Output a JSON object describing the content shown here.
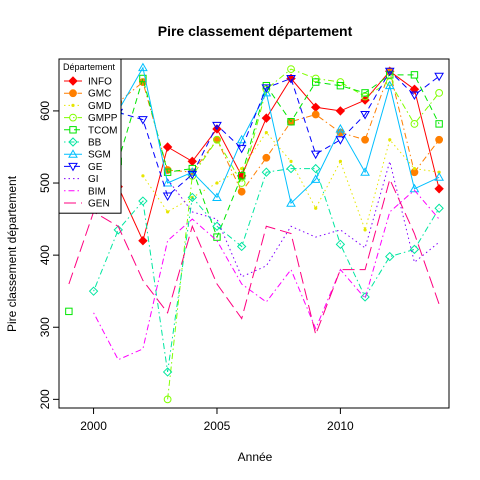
{
  "chart_data": {
    "type": "line",
    "title": "Pire classement département",
    "xlabel": "Année",
    "ylabel": "Pire classement département",
    "xlim": [
      1998.6,
      2014.4
    ],
    "ylim": [
      188,
      672
    ],
    "xticks": [
      2000,
      2005,
      2010
    ],
    "yticks": [
      200,
      300,
      400,
      500,
      600
    ],
    "legend": {
      "title": "Département",
      "position": "top-left"
    },
    "x": [
      1999,
      2000,
      2001,
      2002,
      2003,
      2004,
      2005,
      2006,
      2007,
      2008,
      2009,
      2010,
      2011,
      2012,
      2013,
      2014
    ],
    "series": [
      {
        "name": "INFO",
        "color": "#ff0000",
        "dash": "solid",
        "marker": "diamond-filled",
        "values": [
          null,
          null,
          495,
          420,
          550,
          530,
          575,
          510,
          590,
          645,
          605,
          600,
          615,
          655,
          630,
          492
        ]
      },
      {
        "name": "GMC",
        "color": "#ff7f00",
        "dash": "dash-dot",
        "marker": "circle-filled",
        "values": [
          null,
          540,
          612,
          640,
          518,
          515,
          560,
          488,
          535,
          585,
          595,
          570,
          560,
          655,
          515,
          560
        ]
      },
      {
        "name": "GMD",
        "color": "#e6e600",
        "dash": "dot",
        "marker": "dot",
        "values": [
          null,
          null,
          null,
          510,
          460,
          480,
          500,
          520,
          570,
          530,
          465,
          530,
          435,
          560,
          520,
          515
        ]
      },
      {
        "name": "GMPP",
        "color": "#80ff00",
        "dash": "dash-dot",
        "marker": "circle-open",
        "values": [
          null,
          null,
          null,
          null,
          200,
          510,
          560,
          500,
          630,
          658,
          645,
          640,
          620,
          640,
          582,
          625
        ]
      },
      {
        "name": "TCOM",
        "color": "#00e600",
        "dash": "dash",
        "marker": "square-open",
        "values": [
          322,
          null,
          530,
          645,
          515,
          520,
          425,
          510,
          635,
          585,
          640,
          635,
          625,
          650,
          650,
          582
        ]
      },
      {
        "name": "BB",
        "color": "#00e6a0",
        "dash": "dot-dash",
        "marker": "diamond-open",
        "values": [
          null,
          350,
          435,
          475,
          238,
          480,
          440,
          412,
          515,
          520,
          520,
          415,
          342,
          398,
          408,
          465
        ]
      },
      {
        "name": "SGM",
        "color": "#00bfff",
        "dash": "solid",
        "marker": "triangle-open",
        "values": [
          null,
          null,
          600,
          660,
          500,
          515,
          480,
          560,
          625,
          472,
          505,
          575,
          515,
          635,
          492,
          508
        ]
      },
      {
        "name": "GE",
        "color": "#0000ff",
        "dash": "dash",
        "marker": "triangle-down-open",
        "values": [
          null,
          null,
          598,
          588,
          482,
          512,
          580,
          548,
          632,
          645,
          540,
          560,
          595,
          655,
          622,
          648
        ]
      },
      {
        "name": "GI",
        "color": "#8000ff",
        "dash": "dot",
        "marker": "none",
        "values": [
          null,
          null,
          null,
          null,
          505,
          460,
          450,
          370,
          385,
          440,
          425,
          435,
          410,
          530,
          390,
          418
        ]
      },
      {
        "name": "BIM",
        "color": "#ff00ff",
        "dash": "dot-dash",
        "marker": "none",
        "values": [
          null,
          320,
          255,
          270,
          420,
          450,
          420,
          360,
          335,
          380,
          298,
          380,
          340,
          460,
          490,
          450
        ]
      },
      {
        "name": "GEN",
        "color": "#ff0080",
        "dash": "long-dash",
        "marker": "none",
        "values": [
          360,
          460,
          440,
          365,
          320,
          440,
          360,
          312,
          440,
          430,
          290,
          380,
          380,
          505,
          430,
          332
        ]
      }
    ]
  }
}
